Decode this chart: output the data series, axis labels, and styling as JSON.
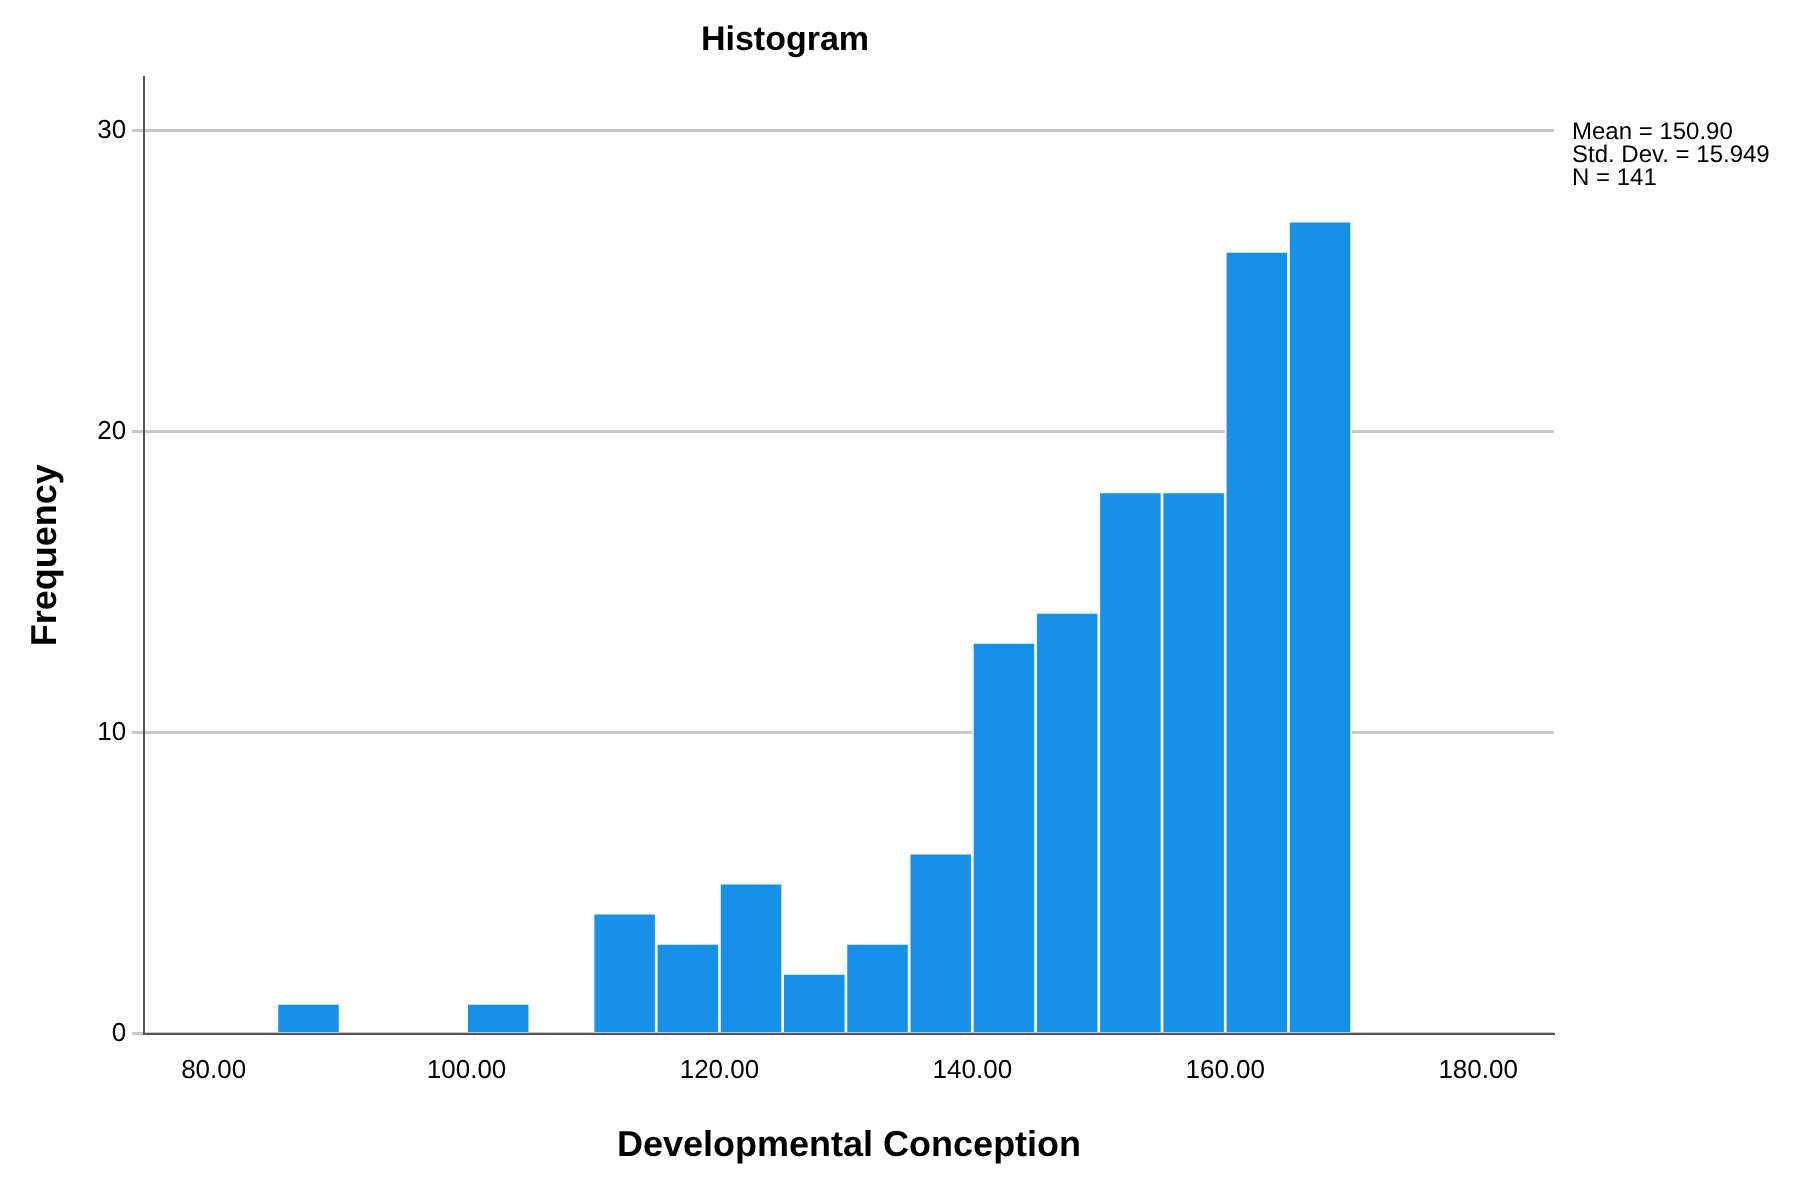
{
  "chart_data": {
    "type": "histogram",
    "title": "Histogram",
    "xlabel": "Developmental Conception",
    "ylabel": "Frequency",
    "bins": [
      85,
      90,
      95,
      100,
      105,
      110,
      115,
      120,
      125,
      130,
      135,
      140,
      145,
      150,
      155,
      160,
      165,
      170
    ],
    "values": [
      1,
      0,
      0,
      1,
      0,
      4,
      3,
      5,
      2,
      3,
      6,
      13,
      14,
      18,
      18,
      26,
      27
    ],
    "color": "#1790e8",
    "xlim": [
      74.5,
      186
    ],
    "xticks": [
      {
        "value": 80,
        "label": "80.00"
      },
      {
        "value": 100,
        "label": "100.00"
      },
      {
        "value": 120,
        "label": "120.00"
      },
      {
        "value": 140,
        "label": "140.00"
      },
      {
        "value": 160,
        "label": "160.00"
      },
      {
        "value": 180,
        "label": "180.00"
      }
    ],
    "ylim": [
      0,
      31.8
    ],
    "yticks": [
      0,
      10,
      20,
      30
    ],
    "grid": "y",
    "legend": false,
    "annotations": [
      "Mean = 150.90",
      "Std. Dev. = 15.949",
      "N = 141"
    ]
  }
}
